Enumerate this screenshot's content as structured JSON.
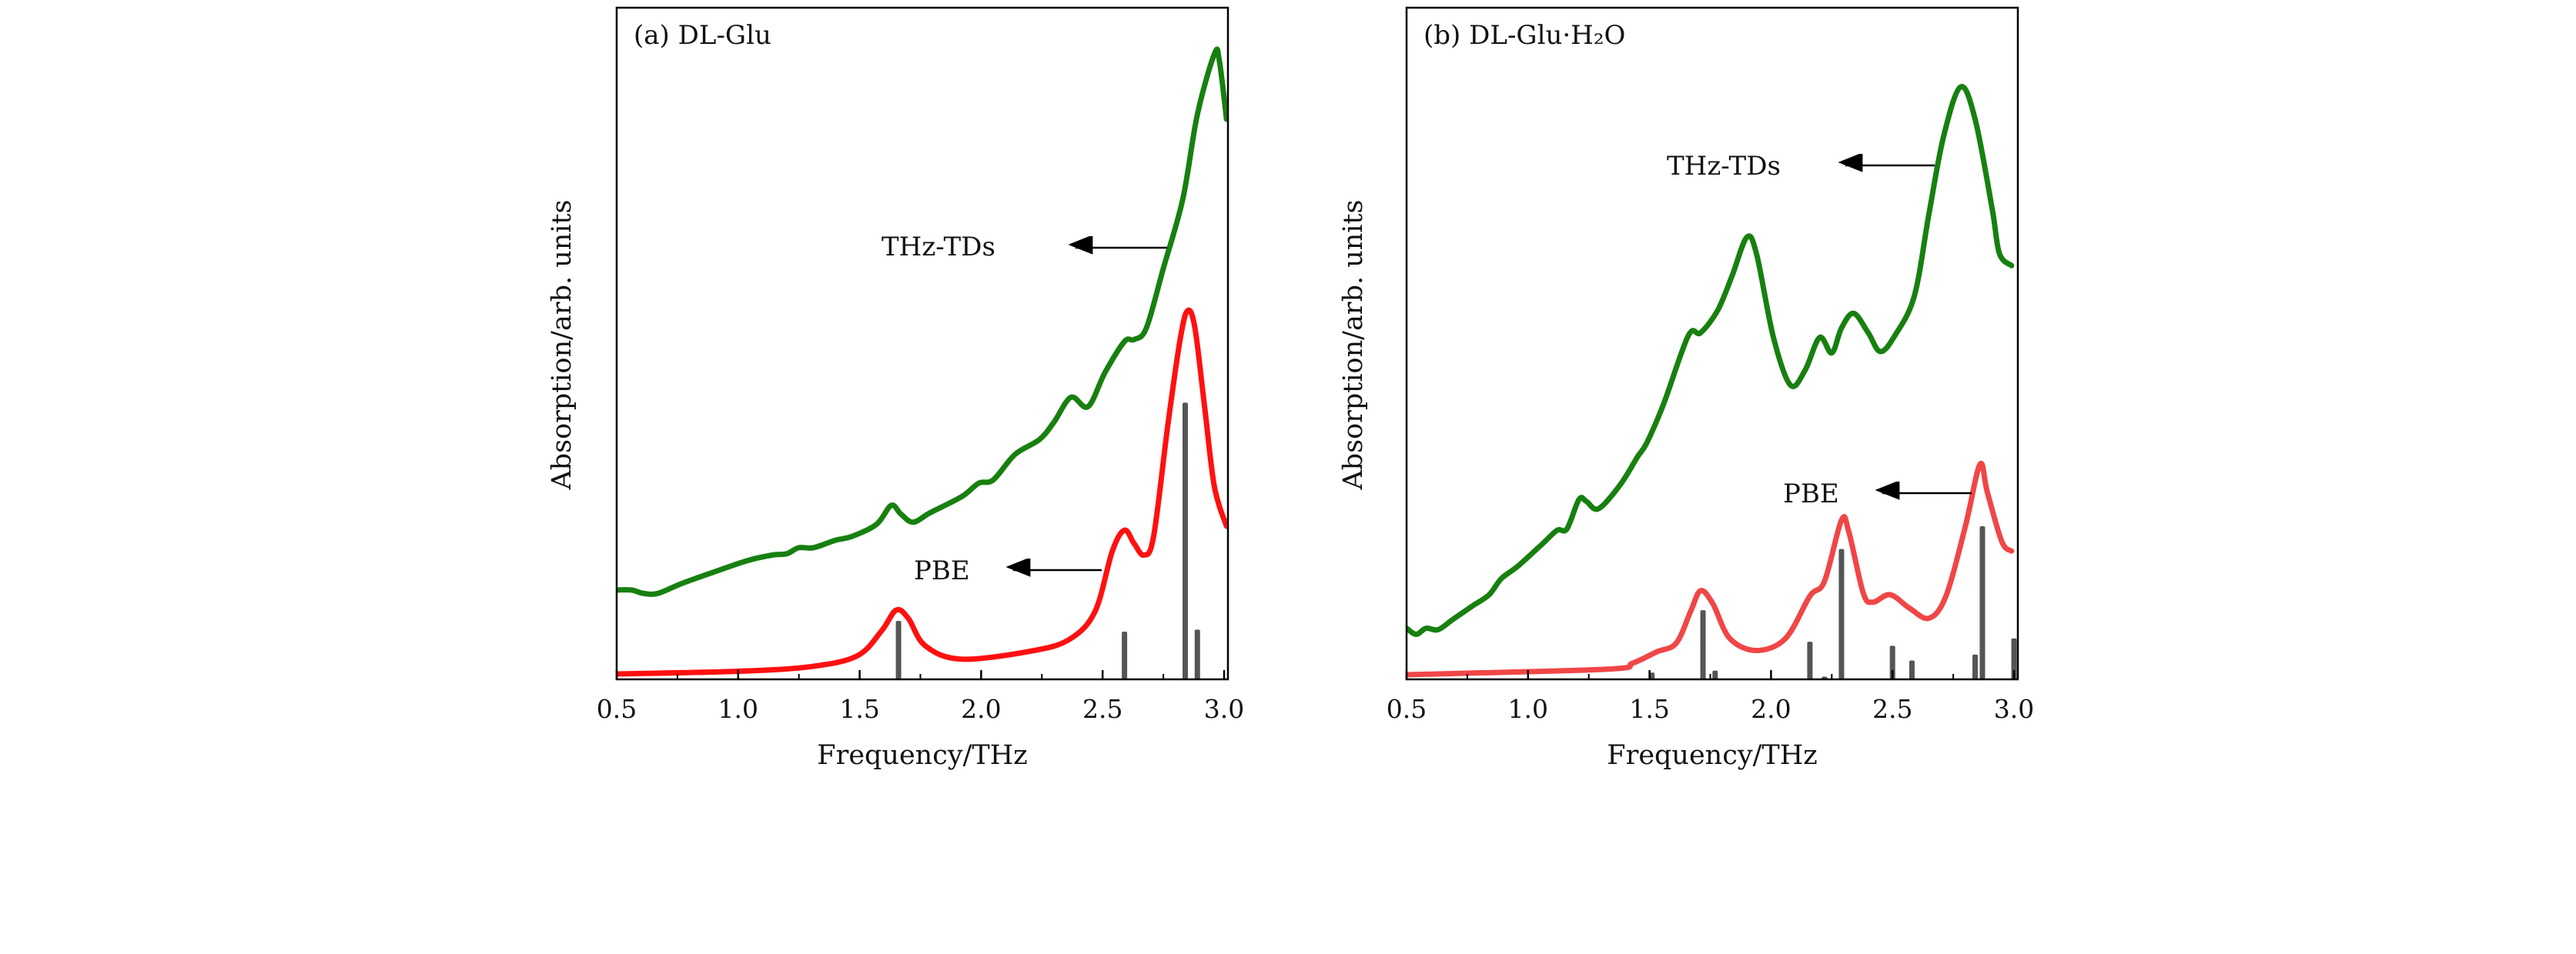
{
  "chart_data": [
    {
      "type": "line",
      "title": "(a) DL-Glu",
      "xlabel": "Frequency/THz",
      "ylabel": "Absorption/arb. units",
      "xlim": [
        0.5,
        3.0
      ],
      "ylim": [
        0,
        1
      ],
      "xticks": [
        "0.5",
        "1.0",
        "1.5",
        "2.0",
        "2.5",
        "3.0"
      ],
      "grid": false,
      "colors": {
        "exp": "#17800f",
        "calc": "#ff1010",
        "sticks": "#555555"
      },
      "annotations": [
        {
          "text": "THz-TDs",
          "points_to": "exp"
        },
        {
          "text": "PBE",
          "points_to": "calc"
        }
      ],
      "series": [
        {
          "id": "exp",
          "x": [
            0.5,
            0.56,
            0.61,
            0.67,
            0.77,
            0.91,
            1.04,
            1.14,
            1.2,
            1.25,
            1.31,
            1.4,
            1.47,
            1.57,
            1.63,
            1.67,
            1.72,
            1.79,
            1.92,
            1.99,
            2.05,
            2.14,
            2.24,
            2.3,
            2.37,
            2.44,
            2.51,
            2.59,
            2.63,
            2.68,
            2.75,
            2.83,
            2.89,
            2.96,
            2.98,
            3.01
          ],
          "y": [
            0.133,
            0.133,
            0.128,
            0.128,
            0.143,
            0.161,
            0.177,
            0.185,
            0.187,
            0.196,
            0.196,
            0.207,
            0.213,
            0.231,
            0.259,
            0.246,
            0.234,
            0.248,
            0.272,
            0.292,
            0.297,
            0.335,
            0.357,
            0.383,
            0.42,
            0.406,
            0.457,
            0.503,
            0.506,
            0.523,
            0.612,
            0.715,
            0.841,
            0.931,
            0.922,
            0.834
          ]
        },
        {
          "id": "calc",
          "x": [
            0.5,
            1.0,
            1.3,
            1.49,
            1.59,
            1.65,
            1.7,
            1.77,
            1.92,
            2.22,
            2.37,
            2.47,
            2.54,
            2.59,
            2.63,
            2.67,
            2.71,
            2.77,
            2.82,
            2.85,
            2.88,
            2.92,
            2.96,
            3.01
          ],
          "y": [
            0.008,
            0.012,
            0.019,
            0.035,
            0.072,
            0.103,
            0.091,
            0.05,
            0.03,
            0.043,
            0.061,
            0.102,
            0.191,
            0.222,
            0.202,
            0.185,
            0.213,
            0.383,
            0.508,
            0.549,
            0.523,
            0.405,
            0.287,
            0.228
          ]
        }
      ],
      "sticks": {
        "x": [
          1.66,
          2.59,
          2.84,
          2.89
        ],
        "y": [
          0.087,
          0.071,
          0.412,
          0.074
        ]
      }
    },
    {
      "type": "line",
      "title": "(b) DL-Glu·H₂O",
      "xlabel": "Frequency/THz",
      "ylabel": "Absorption/arb. units",
      "xlim": [
        0.5,
        3.0
      ],
      "ylim": [
        0,
        1
      ],
      "xticks": [
        "0.5",
        "1.0",
        "1.5",
        "2.0",
        "2.5",
        "3.0"
      ],
      "grid": false,
      "colors": {
        "exp": "#17800f",
        "calc": "#f04646",
        "sticks": "#555555"
      },
      "annotations": [
        {
          "text": "THz-TDs",
          "points_to": "exp"
        },
        {
          "text": "PBE",
          "points_to": "calc"
        }
      ],
      "series": [
        {
          "id": "exp",
          "x": [
            0.5,
            0.54,
            0.58,
            0.63,
            0.69,
            0.77,
            0.84,
            0.89,
            0.96,
            1.06,
            1.12,
            1.16,
            1.21,
            1.24,
            1.29,
            1.38,
            1.45,
            1.49,
            1.56,
            1.66,
            1.71,
            1.78,
            1.84,
            1.9,
            1.94,
            2.01,
            2.08,
            2.14,
            2.2,
            2.25,
            2.29,
            2.34,
            2.4,
            2.45,
            2.51,
            2.59,
            2.65,
            2.71,
            2.78,
            2.84,
            2.91,
            2.94,
            2.99
          ],
          "y": [
            0.076,
            0.067,
            0.076,
            0.074,
            0.089,
            0.109,
            0.126,
            0.15,
            0.169,
            0.202,
            0.222,
            0.224,
            0.268,
            0.265,
            0.254,
            0.29,
            0.331,
            0.353,
            0.412,
            0.512,
            0.516,
            0.549,
            0.601,
            0.658,
            0.634,
            0.509,
            0.438,
            0.46,
            0.509,
            0.486,
            0.523,
            0.545,
            0.516,
            0.488,
            0.512,
            0.571,
            0.693,
            0.808,
            0.882,
            0.834,
            0.701,
            0.634,
            0.616
          ]
        },
        {
          "id": "calc",
          "x": [
            0.5,
            1.32,
            1.43,
            1.53,
            1.61,
            1.67,
            1.71,
            1.76,
            1.83,
            1.94,
            2.06,
            2.16,
            2.22,
            2.29,
            2.32,
            2.38,
            2.42,
            2.49,
            2.57,
            2.65,
            2.72,
            2.8,
            2.86,
            2.89,
            2.95,
            2.99
          ],
          "y": [
            0.007,
            0.015,
            0.024,
            0.041,
            0.054,
            0.102,
            0.132,
            0.113,
            0.061,
            0.043,
            0.061,
            0.124,
            0.146,
            0.237,
            0.22,
            0.128,
            0.115,
            0.126,
            0.106,
            0.091,
            0.124,
            0.228,
            0.32,
            0.279,
            0.205,
            0.191
          ]
        }
      ],
      "sticks": {
        "x": [
          1.51,
          1.72,
          1.77,
          2.16,
          2.22,
          2.29,
          2.5,
          2.58,
          2.84,
          2.87,
          3.0
        ],
        "y": [
          0.01,
          0.103,
          0.013,
          0.056,
          0.004,
          0.194,
          0.05,
          0.028,
          0.037,
          0.228,
          0.061
        ]
      }
    }
  ]
}
